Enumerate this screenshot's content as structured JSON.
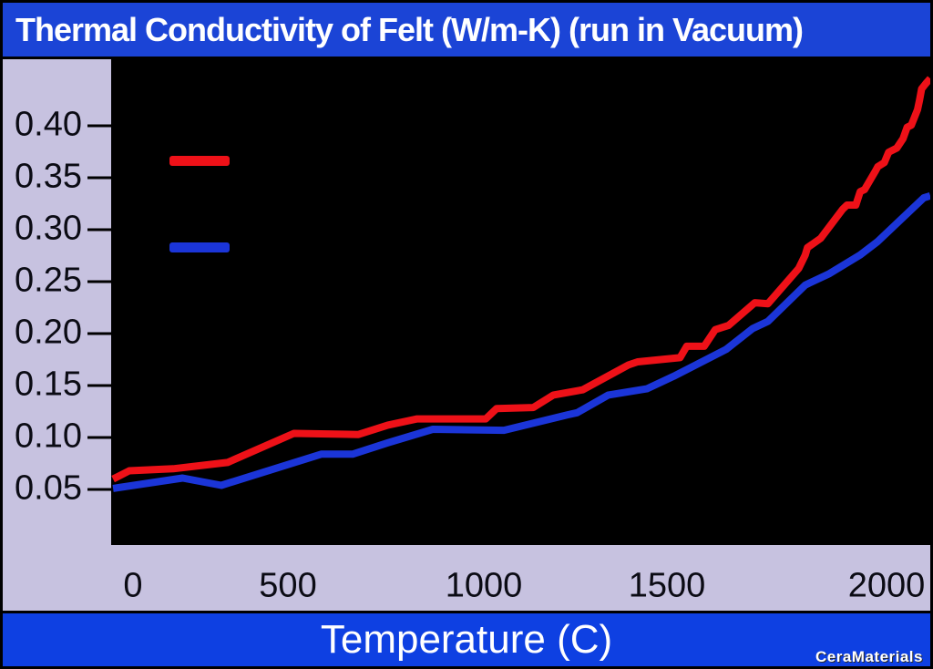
{
  "title": "Thermal Conductivity of Felt (W/m-K) (run in Vacuum)",
  "x_axis_title": "Temperature (C)",
  "brand": "CeraMaterials",
  "colors": {
    "title_bar": "#1b44d6",
    "bottom_bar": "#0e40e2",
    "panel_lavender": "#c7c2e0",
    "plot_background": "#000000",
    "axis_text": "#0b0b14",
    "red_series": "#ee1118",
    "blue_series": "#1b35d8"
  },
  "chart_data": {
    "type": "line",
    "title": "Thermal Conductivity of Felt (W/m-K) (run in Vacuum)",
    "xlabel": "Temperature (C)",
    "ylabel": "",
    "grid": false,
    "plot_background": "#000000",
    "legend": {
      "position": "top-left-inside",
      "labels_visible": false,
      "entries": [
        "red",
        "blue"
      ]
    },
    "x_axis": {
      "ticks": [
        0,
        500,
        1000,
        1500,
        2000
      ],
      "range_shown": [
        -70,
        2106
      ],
      "anchor_temps": [
        -70,
        0,
        500,
        1000,
        1500,
        2000,
        2106
      ],
      "anchor_fracs": [
        0.0,
        0.0267,
        0.2158,
        0.455,
        0.6785,
        0.9466,
        1.0
      ]
    },
    "y_axis": {
      "ticks": [
        0.05,
        0.1,
        0.15,
        0.2,
        0.25,
        0.3,
        0.35,
        0.4
      ],
      "min": 0.05,
      "max": 0.4,
      "frac_at_min": 0.8856,
      "frac_per_unit": 2.1363
    },
    "series": [
      {
        "id": "red",
        "name": "red",
        "color": "#ee1118",
        "points": [
          [
            -64,
            0.06
          ],
          [
            -12,
            0.068
          ],
          [
            130,
            0.07
          ],
          [
            305,
            0.076
          ],
          [
            515,
            0.104
          ],
          [
            680,
            0.103
          ],
          [
            755,
            0.112
          ],
          [
            830,
            0.118
          ],
          [
            1005,
            0.118
          ],
          [
            1035,
            0.128
          ],
          [
            1135,
            0.129
          ],
          [
            1190,
            0.141
          ],
          [
            1270,
            0.146
          ],
          [
            1395,
            0.17
          ],
          [
            1420,
            0.173
          ],
          [
            1530,
            0.177
          ],
          [
            1545,
            0.188
          ],
          [
            1585,
            0.188
          ],
          [
            1610,
            0.204
          ],
          [
            1640,
            0.208
          ],
          [
            1700,
            0.23
          ],
          [
            1730,
            0.229
          ],
          [
            1800,
            0.263
          ],
          [
            1815,
            0.276
          ],
          [
            1820,
            0.283
          ],
          [
            1850,
            0.292
          ],
          [
            1900,
            0.32
          ],
          [
            1910,
            0.324
          ],
          [
            1930,
            0.324
          ],
          [
            1940,
            0.337
          ],
          [
            1950,
            0.339
          ],
          [
            1975,
            0.357
          ],
          [
            1980,
            0.361
          ],
          [
            1995,
            0.365
          ],
          [
            2005,
            0.375
          ],
          [
            2025,
            0.379
          ],
          [
            2040,
            0.388
          ],
          [
            2050,
            0.399
          ],
          [
            2060,
            0.401
          ],
          [
            2075,
            0.416
          ],
          [
            2080,
            0.425
          ],
          [
            2085,
            0.436
          ],
          [
            2095,
            0.441
          ],
          [
            2106,
            0.446
          ]
        ]
      },
      {
        "id": "blue",
        "name": "blue",
        "color": "#1b35d8",
        "points": [
          [
            -64,
            0.051
          ],
          [
            160,
            0.061
          ],
          [
            285,
            0.054
          ],
          [
            585,
            0.084
          ],
          [
            665,
            0.084
          ],
          [
            755,
            0.095
          ],
          [
            870,
            0.108
          ],
          [
            1055,
            0.107
          ],
          [
            1230,
            0.122
          ],
          [
            1255,
            0.124
          ],
          [
            1340,
            0.141
          ],
          [
            1445,
            0.147
          ],
          [
            1515,
            0.159
          ],
          [
            1635,
            0.185
          ],
          [
            1695,
            0.205
          ],
          [
            1730,
            0.212
          ],
          [
            1815,
            0.247
          ],
          [
            1870,
            0.258
          ],
          [
            1940,
            0.276
          ],
          [
            1980,
            0.289
          ],
          [
            2090,
            0.331
          ],
          [
            2106,
            0.333
          ]
        ]
      }
    ],
    "legend_swatches": [
      {
        "series": "red",
        "x": 64,
        "y": 106,
        "w": 66,
        "h": 11
      },
      {
        "series": "blue",
        "x": 64,
        "y": 201,
        "w": 66,
        "h": 11
      }
    ]
  }
}
